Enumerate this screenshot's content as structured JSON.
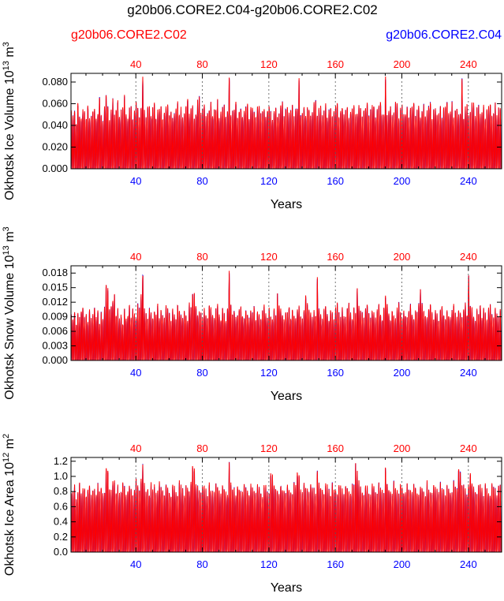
{
  "figure": {
    "title": "g20b06.CORE2.C04-g20b06.CORE2.C02",
    "case_top_left": "g20b06.CORE2.C02",
    "case_top_right": "g20b06.CORE2.C04",
    "case_top_left_color": "#ff0000",
    "case_top_right_color": "#0000ff"
  },
  "chart_data": [
    {
      "type": "line",
      "ylabel": "Okhotsk Ice Volume 10^13 m^3",
      "xlabel": "Years",
      "xlim": [
        1,
        260
      ],
      "ylim": [
        0,
        0.088
      ],
      "yticks": [
        "0.000",
        "0.020",
        "0.040",
        "0.060",
        "0.080"
      ],
      "ytick_values": [
        0,
        0.02,
        0.04,
        0.06,
        0.08
      ],
      "xticks_top": [
        40,
        80,
        120,
        160,
        200,
        240
      ],
      "xticks_bottom": [
        40,
        80,
        120,
        160,
        200,
        240
      ],
      "gridlines_x": [
        40,
        80,
        120,
        160,
        200,
        240
      ],
      "series": [
        {
          "name": "g20b06.CORE2.C04",
          "color": "#0000ff"
        },
        {
          "name": "g20b06.CORE2.C02",
          "color": "#ff0000"
        }
      ],
      "annual_max": [
        0.055,
        0.05,
        0.058,
        0.045,
        0.065,
        0.052,
        0.048,
        0.06,
        0.055,
        0.05,
        0.062,
        0.047,
        0.053,
        0.058,
        0.06,
        0.049,
        0.055,
        0.07,
        0.052,
        0.048,
        0.058,
        0.073,
        0.06,
        0.05,
        0.055,
        0.068,
        0.052,
        0.058,
        0.065,
        0.05,
        0.055,
        0.06,
        0.07,
        0.052,
        0.048,
        0.058,
        0.062,
        0.05,
        0.055,
        0.065,
        0.058,
        0.052,
        0.06,
        0.088,
        0.055,
        0.05,
        0.058,
        0.062,
        0.052,
        0.06,
        0.065,
        0.05,
        0.055,
        0.058,
        0.062,
        0.05,
        0.055,
        0.06,
        0.065,
        0.052,
        0.058,
        0.05,
        0.055,
        0.06,
        0.065,
        0.052,
        0.058,
        0.05,
        0.055,
        0.062,
        0.07,
        0.052,
        0.058,
        0.06,
        0.05,
        0.055,
        0.065,
        0.068,
        0.052,
        0.058,
        0.06,
        0.05,
        0.055,
        0.058,
        0.062,
        0.052,
        0.058,
        0.06,
        0.065,
        0.05,
        0.055,
        0.06,
        0.062,
        0.05,
        0.058,
        0.088,
        0.052,
        0.055,
        0.06,
        0.065,
        0.05,
        0.058,
        0.06,
        0.052,
        0.055,
        0.062,
        0.065,
        0.05,
        0.058,
        0.06,
        0.055,
        0.05,
        0.058,
        0.062,
        0.052,
        0.055,
        0.06,
        0.05,
        0.058,
        0.062,
        0.055,
        0.05,
        0.058,
        0.06,
        0.052,
        0.055,
        0.062,
        0.065,
        0.05,
        0.058,
        0.06,
        0.052,
        0.055,
        0.062,
        0.05,
        0.058,
        0.06,
        0.087,
        0.052,
        0.055,
        0.062,
        0.05,
        0.058,
        0.06,
        0.052,
        0.055,
        0.062,
        0.065,
        0.05,
        0.058,
        0.06,
        0.052,
        0.055,
        0.062,
        0.05,
        0.058,
        0.06,
        0.052,
        0.055,
        0.062,
        0.065,
        0.05,
        0.058,
        0.06,
        0.052,
        0.055,
        0.062,
        0.05,
        0.058,
        0.06,
        0.065,
        0.052,
        0.055,
        0.06,
        0.062,
        0.05,
        0.058,
        0.06,
        0.065,
        0.052,
        0.055,
        0.06,
        0.062,
        0.05,
        0.058,
        0.06,
        0.065,
        0.052,
        0.055,
        0.086,
        0.05,
        0.058,
        0.06,
        0.052,
        0.055,
        0.062,
        0.065,
        0.05,
        0.058,
        0.06,
        0.052,
        0.055,
        0.062,
        0.05,
        0.058,
        0.06,
        0.065,
        0.052,
        0.055,
        0.062,
        0.05,
        0.058,
        0.06,
        0.052,
        0.055,
        0.062,
        0.065,
        0.05,
        0.058,
        0.06,
        0.052,
        0.055,
        0.062,
        0.05,
        0.058,
        0.06,
        0.065,
        0.052,
        0.055,
        0.062,
        0.05,
        0.058,
        0.06,
        0.052,
        0.055,
        0.086,
        0.05,
        0.058,
        0.06,
        0.052,
        0.055,
        0.062,
        0.065,
        0.05,
        0.058,
        0.06,
        0.052,
        0.055,
        0.062,
        0.05,
        0.058,
        0.06,
        0.065,
        0.052,
        0.055,
        0.062,
        0.05,
        0.058,
        0.06,
        0.052
      ]
    },
    {
      "type": "line",
      "ylabel": "Okhotsk Snow Volume 10^13 m^3",
      "xlabel": "Years",
      "xlim": [
        1,
        260
      ],
      "ylim": [
        0,
        0.0195
      ],
      "yticks": [
        "0.000",
        "0.003",
        "0.006",
        "0.009",
        "0.012",
        "0.015",
        "0.018"
      ],
      "ytick_values": [
        0,
        0.003,
        0.006,
        0.009,
        0.012,
        0.015,
        0.018
      ],
      "xticks_top": [
        40,
        80,
        120,
        160,
        200,
        240
      ],
      "xticks_bottom": [
        40,
        80,
        120,
        160,
        200,
        240
      ],
      "gridlines_x": [
        40,
        80,
        120,
        160,
        200,
        240
      ],
      "series": [
        {
          "name": "g20b06.CORE2.C04",
          "color": "#0000ff"
        },
        {
          "name": "g20b06.CORE2.C02",
          "color": "#ff0000"
        }
      ],
      "annual_max": [
        0.01,
        0.009,
        0.011,
        0.008,
        0.01,
        0.009,
        0.011,
        0.012,
        0.009,
        0.01,
        0.008,
        0.011,
        0.009,
        0.01,
        0.012,
        0.009,
        0.011,
        0.008,
        0.01,
        0.009,
        0.011,
        0.016,
        0.015,
        0.011,
        0.012,
        0.013,
        0.014,
        0.01,
        0.011,
        0.009,
        0.01,
        0.008,
        0.011,
        0.009,
        0.01,
        0.012,
        0.009,
        0.011,
        0.01,
        0.009,
        0.012,
        0.011,
        0.014,
        0.019,
        0.011,
        0.01,
        0.009,
        0.011,
        0.01,
        0.009,
        0.011,
        0.01,
        0.012,
        0.009,
        0.011,
        0.01,
        0.009,
        0.012,
        0.011,
        0.01,
        0.009,
        0.011,
        0.01,
        0.009,
        0.012,
        0.011,
        0.01,
        0.009,
        0.011,
        0.01,
        0.009,
        0.012,
        0.011,
        0.015,
        0.014,
        0.012,
        0.01,
        0.011,
        0.01,
        0.009,
        0.011,
        0.01,
        0.009,
        0.012,
        0.011,
        0.01,
        0.009,
        0.011,
        0.012,
        0.01,
        0.009,
        0.011,
        0.01,
        0.009,
        0.011,
        0.019,
        0.012,
        0.01,
        0.011,
        0.009,
        0.01,
        0.011,
        0.012,
        0.01,
        0.009,
        0.011,
        0.01,
        0.009,
        0.011,
        0.01,
        0.012,
        0.009,
        0.011,
        0.01,
        0.009,
        0.011,
        0.012,
        0.01,
        0.009,
        0.011,
        0.01,
        0.009,
        0.011,
        0.01,
        0.014,
        0.012,
        0.011,
        0.01,
        0.009,
        0.011,
        0.01,
        0.012,
        0.009,
        0.011,
        0.01,
        0.009,
        0.011,
        0.012,
        0.01,
        0.009,
        0.011,
        0.014,
        0.012,
        0.011,
        0.01,
        0.009,
        0.011,
        0.01,
        0.018,
        0.011,
        0.01,
        0.009,
        0.011,
        0.012,
        0.01,
        0.009,
        0.011,
        0.01,
        0.009,
        0.011,
        0.012,
        0.01,
        0.009,
        0.011,
        0.01,
        0.009,
        0.011,
        0.012,
        0.01,
        0.009,
        0.011,
        0.01,
        0.015,
        0.012,
        0.011,
        0.01,
        0.009,
        0.011,
        0.012,
        0.01,
        0.009,
        0.011,
        0.01,
        0.009,
        0.011,
        0.012,
        0.01,
        0.009,
        0.011,
        0.014,
        0.012,
        0.01,
        0.009,
        0.011,
        0.01,
        0.009,
        0.011,
        0.012,
        0.01,
        0.009,
        0.011,
        0.01,
        0.009,
        0.011,
        0.012,
        0.01,
        0.009,
        0.011,
        0.01,
        0.012,
        0.015,
        0.013,
        0.011,
        0.01,
        0.009,
        0.011,
        0.012,
        0.01,
        0.009,
        0.011,
        0.01,
        0.009,
        0.011,
        0.012,
        0.01,
        0.009,
        0.011,
        0.01,
        0.009,
        0.011,
        0.012,
        0.01,
        0.009,
        0.011,
        0.01,
        0.009,
        0.011,
        0.012,
        0.01,
        0.018,
        0.012,
        0.011,
        0.01,
        0.009,
        0.011,
        0.01,
        0.012,
        0.009,
        0.011,
        0.01,
        0.009,
        0.011,
        0.012,
        0.01,
        0.009,
        0.011,
        0.01,
        0.009,
        0.011,
        0.01
      ]
    },
    {
      "type": "line",
      "ylabel": "Okhotsk Ice Area 10^12 m^2",
      "xlabel": "Years",
      "xlim": [
        1,
        260
      ],
      "ylim": [
        0,
        1.25
      ],
      "yticks": [
        "0.0",
        "0.2",
        "0.4",
        "0.6",
        "0.8",
        "1.0",
        "1.2"
      ],
      "ytick_values": [
        0,
        0.2,
        0.4,
        0.6,
        0.8,
        1.0,
        1.2
      ],
      "xticks_top": [
        40,
        80,
        120,
        160,
        200,
        240
      ],
      "xticks_bottom": [
        40,
        80,
        120,
        160,
        200,
        240
      ],
      "gridlines_x": [
        40,
        80,
        120,
        160,
        200,
        240
      ],
      "series": [
        {
          "name": "g20b06.CORE2.C04",
          "color": "#0000ff"
        },
        {
          "name": "g20b06.CORE2.C02",
          "color": "#ff0000"
        }
      ],
      "annual_max": [
        0.85,
        0.8,
        0.9,
        0.75,
        0.85,
        0.95,
        0.8,
        0.85,
        0.9,
        0.8,
        0.85,
        0.95,
        0.8,
        0.9,
        0.85,
        0.8,
        0.95,
        0.85,
        0.9,
        0.8,
        0.85,
        1.2,
        1.15,
        0.9,
        0.85,
        1.0,
        0.95,
        0.85,
        0.9,
        0.8,
        0.85,
        0.95,
        0.9,
        0.8,
        0.85,
        0.95,
        0.9,
        0.8,
        0.85,
        1.0,
        0.9,
        0.85,
        1.05,
        1.2,
        0.95,
        0.85,
        0.9,
        0.8,
        0.95,
        0.85,
        0.9,
        0.8,
        0.85,
        0.95,
        0.9,
        0.85,
        0.8,
        0.95,
        0.9,
        0.85,
        0.8,
        0.95,
        0.9,
        0.85,
        0.8,
        0.95,
        0.9,
        0.85,
        0.8,
        0.95,
        0.9,
        0.85,
        1.0,
        1.2,
        1.15,
        0.95,
        0.9,
        0.85,
        0.8,
        0.95,
        0.9,
        0.85,
        0.8,
        0.95,
        0.9,
        0.85,
        0.8,
        0.95,
        0.9,
        0.85,
        0.8,
        0.95,
        0.9,
        0.85,
        0.8,
        1.2,
        0.95,
        0.9,
        0.85,
        0.8,
        0.95,
        0.9,
        0.85,
        0.8,
        0.95,
        0.9,
        0.85,
        0.8,
        0.95,
        0.9,
        0.85,
        0.8,
        0.95,
        0.9,
        0.85,
        0.8,
        0.95,
        0.9,
        0.85,
        0.8,
        1.1,
        1.05,
        0.95,
        0.9,
        0.85,
        0.8,
        0.95,
        0.9,
        0.85,
        0.8,
        0.95,
        0.9,
        0.85,
        0.8,
        0.95,
        0.9,
        1.15,
        1.1,
        0.85,
        0.8,
        0.95,
        0.9,
        0.85,
        0.8,
        0.95,
        0.9,
        0.85,
        0.8,
        1.15,
        0.95,
        0.9,
        0.85,
        0.8,
        0.95,
        0.9,
        0.85,
        0.8,
        0.95,
        0.9,
        0.85,
        0.8,
        0.95,
        0.9,
        0.85,
        0.8,
        0.95,
        0.9,
        0.85,
        0.8,
        0.95,
        0.9,
        1.18,
        1.1,
        0.95,
        0.9,
        0.85,
        0.8,
        0.95,
        0.9,
        0.85,
        0.8,
        0.95,
        0.9,
        0.85,
        0.8,
        0.95,
        0.9,
        0.85,
        0.8,
        1.2,
        0.95,
        0.9,
        0.85,
        0.8,
        0.95,
        0.9,
        0.85,
        0.8,
        0.95,
        0.9,
        0.85,
        0.8,
        0.95,
        0.9,
        0.85,
        0.8,
        0.95,
        0.9,
        0.85,
        0.8,
        0.95,
        0.9,
        0.85,
        0.8,
        0.95,
        0.9,
        0.85,
        0.8,
        0.95,
        0.9,
        0.85,
        0.8,
        0.95,
        0.9,
        0.85,
        0.8,
        0.95,
        0.9,
        0.85,
        0.8,
        0.95,
        0.9,
        0.85,
        1.2,
        1.1,
        0.95,
        0.9,
        0.85,
        0.8,
        0.95,
        1.15,
        1.0,
        0.9,
        0.85,
        0.8,
        0.95,
        0.9,
        0.85,
        0.8,
        0.95,
        0.9,
        0.85,
        0.8,
        0.95,
        0.9,
        0.85,
        0.8,
        0.95,
        0.9,
        0.85
      ]
    }
  ]
}
